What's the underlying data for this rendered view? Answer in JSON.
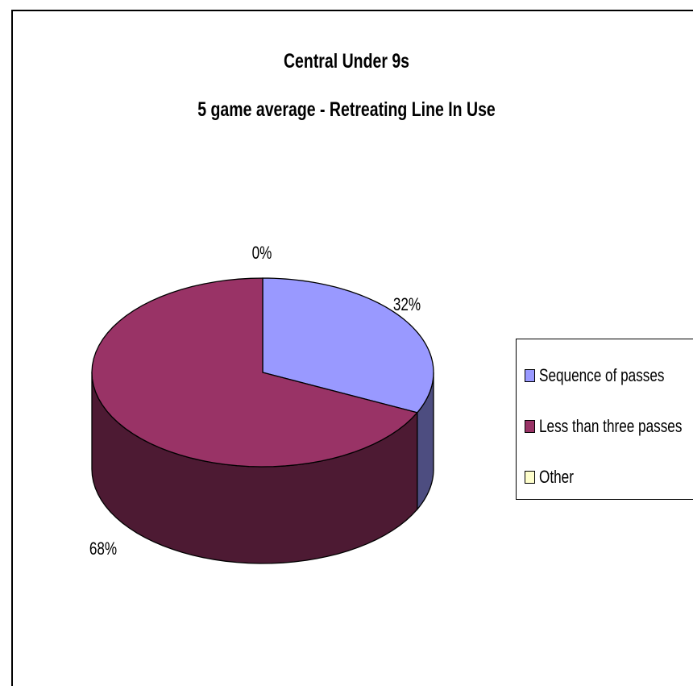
{
  "chart_data": {
    "type": "pie",
    "title": "Central Under 9s",
    "subtitle": "5 game average - Retreating Line In Use",
    "categories": [
      "Sequence of passes",
      "Less than three passes",
      "Other"
    ],
    "values": [
      32,
      68,
      0
    ],
    "data_labels": [
      "32%",
      "68%",
      "0%"
    ],
    "colors": [
      "#9999ff",
      "#993366",
      "#ffffcc"
    ],
    "legend": {
      "placement": "right",
      "entries": [
        "Sequence of passes",
        "Less than three passes",
        "Other"
      ]
    }
  }
}
